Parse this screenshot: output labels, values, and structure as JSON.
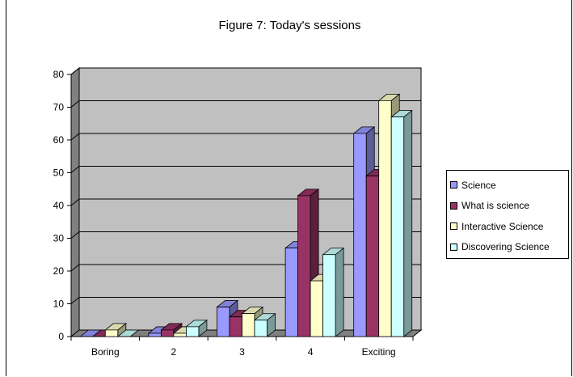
{
  "chart_data": {
    "type": "bar",
    "title": "Figure 7: Today's sessions",
    "categories": [
      "Boring",
      "2",
      "3",
      "4",
      "Exciting"
    ],
    "series": [
      {
        "name": "Science",
        "values": [
          0,
          1,
          9,
          27,
          62
        ],
        "color": "#9999ff"
      },
      {
        "name": "What is science",
        "values": [
          0,
          2,
          6,
          43,
          49
        ],
        "color": "#993366"
      },
      {
        "name": "Interactive Science",
        "values": [
          2,
          1,
          7,
          17,
          72
        ],
        "color": "#ffffcc"
      },
      {
        "name": "Discovering Science",
        "values": [
          0,
          3,
          5,
          25,
          67
        ],
        "color": "#ccffff"
      }
    ],
    "ylim": [
      0,
      80
    ],
    "yticks": [
      "0",
      "10",
      "20",
      "30",
      "40",
      "50",
      "60",
      "70",
      "80"
    ],
    "grid": true,
    "legend_position": "right",
    "wall_color": "#c0c0c0",
    "floor_color": "#808080"
  }
}
